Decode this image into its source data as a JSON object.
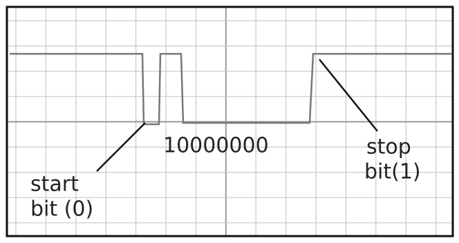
{
  "labels": {
    "byte": "10000000",
    "stop": "stop",
    "stop_bit": "bit(1)",
    "start": "start",
    "start_bit": "bit (0)"
  }
}
